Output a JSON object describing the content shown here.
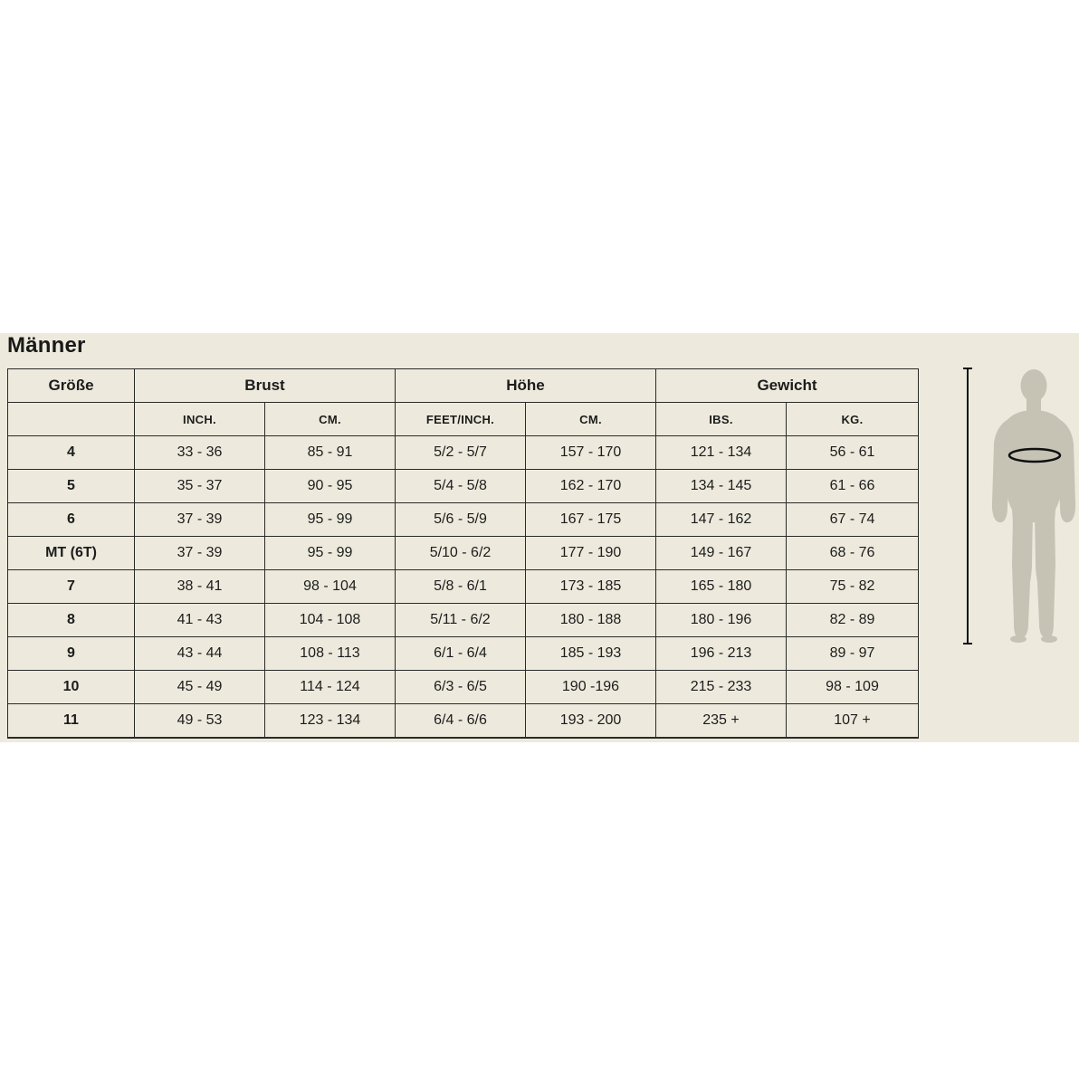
{
  "title": "Männer",
  "colors": {
    "page_background": "#ffffff",
    "band_background": "#edeadd",
    "border": "#2a2a2a",
    "text": "#1c1c1c",
    "silhouette": "#c6c3b5",
    "measure_line": "#111111"
  },
  "table": {
    "groups": [
      {
        "label": "Größe"
      },
      {
        "label": "Brust"
      },
      {
        "label": "Höhe"
      },
      {
        "label": "Gewicht"
      }
    ],
    "sub_headers": [
      "",
      "INCH.",
      "CM.",
      "FEET/INCH.",
      "CM.",
      "IBS.",
      "KG."
    ],
    "rows": [
      {
        "size": "4",
        "values": [
          "33 - 36",
          "85 - 91",
          "5/2 - 5/7",
          "157 - 170",
          "121 - 134",
          "56 - 61"
        ]
      },
      {
        "size": "5",
        "values": [
          "35 - 37",
          "90 - 95",
          "5/4 - 5/8",
          "162 - 170",
          "134 - 145",
          "61 - 66"
        ]
      },
      {
        "size": "6",
        "values": [
          "37 - 39",
          "95 - 99",
          "5/6 - 5/9",
          "167 - 175",
          "147 - 162",
          "67 - 74"
        ]
      },
      {
        "size": "MT (6T)",
        "values": [
          "37 - 39",
          "95 - 99",
          "5/10 - 6/2",
          "177 - 190",
          "149 - 167",
          "68 - 76"
        ]
      },
      {
        "size": "7",
        "values": [
          "38 - 41",
          "98 - 104",
          "5/8 - 6/1",
          "173 - 185",
          "165 - 180",
          "75 - 82"
        ]
      },
      {
        "size": "8",
        "values": [
          "41 - 43",
          "104 - 108",
          "5/11 - 6/2",
          "180 - 188",
          "180 - 196",
          "82 - 89"
        ]
      },
      {
        "size": "9",
        "values": [
          "43 - 44",
          "108 - 113",
          "6/1 - 6/4",
          "185 - 193",
          "196 - 213",
          "89 - 97"
        ]
      },
      {
        "size": "10",
        "values": [
          "45 - 49",
          "114 - 124",
          "6/3 - 6/5",
          "190 -196",
          "215 - 233",
          "98 - 109"
        ]
      },
      {
        "size": "11",
        "values": [
          "49 - 53",
          "123 - 134",
          "6/4 - 6/6",
          "193 - 200",
          "235 +",
          "107 +"
        ]
      }
    ]
  },
  "figure": {
    "silhouette": "male-body-front",
    "annotations": [
      "height-measure-line",
      "chest-circumference-ellipse"
    ]
  }
}
